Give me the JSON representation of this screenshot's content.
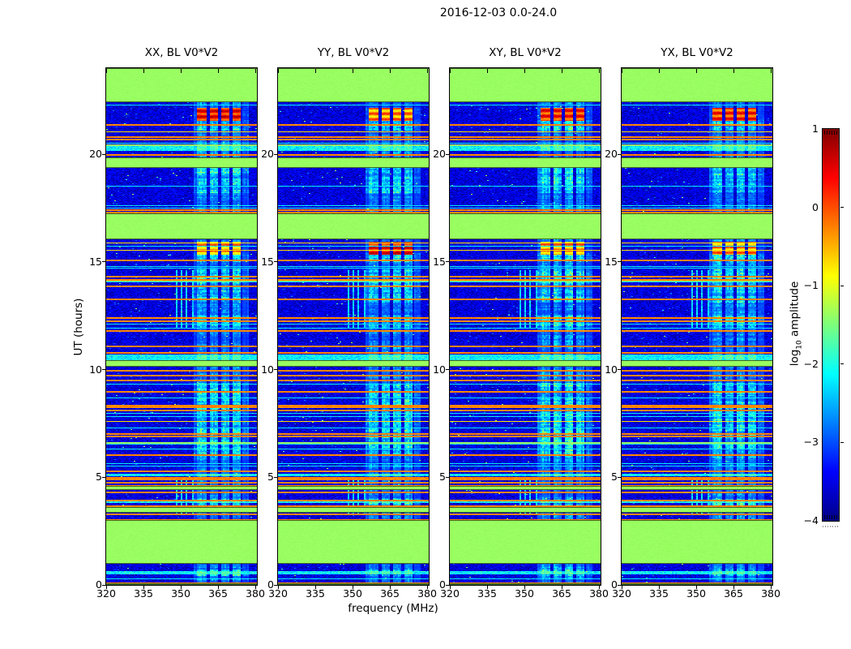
{
  "chart_data": {
    "type": "heatmap",
    "title": "2016-12-03 0.0-24.0",
    "xlabel": "frequency (MHz)",
    "ylabel": "UT (hours)",
    "x_range": [
      320,
      380.65
    ],
    "y_range": [
      0,
      24
    ],
    "xticks": [
      320,
      335,
      350,
      365,
      380
    ],
    "yticks": [
      0,
      5,
      10,
      15,
      20
    ],
    "panels": [
      {
        "label": "XX, BL V0*V2",
        "seed": 11,
        "blob1_v": 0.3,
        "blob2_v": -0.45
      },
      {
        "label": "YY, BL V0*V2",
        "seed": 27,
        "blob1_v": -0.35,
        "blob2_v": 0.3
      },
      {
        "label": "XY, BL V0*V2",
        "seed": 43,
        "blob1_v": 0.15,
        "blob2_v": -0.4
      },
      {
        "label": "YX, BL V0*V2",
        "seed": 59,
        "blob1_v": 0.1,
        "blob2_v": -0.4
      }
    ],
    "colorbar": {
      "label_pre": "log",
      "label_sub": "10",
      "label_post": " amplitude",
      "ticks": [
        "1",
        "0",
        "−1",
        "−2",
        "−3",
        "−4"
      ],
      "vmin": -4,
      "vmax": 1,
      "colormap": "jet"
    },
    "features": {
      "green_bands": [
        [
          22.4,
          24.0
        ],
        [
          19.37,
          19.85
        ],
        [
          16.05,
          17.25
        ],
        [
          10.12,
          10.42
        ],
        [
          4.4,
          4.6
        ],
        [
          3.35,
          3.62
        ],
        [
          0.98,
          3.02
        ],
        [
          0.0,
          0.06
        ]
      ],
      "green_lines": [
        20.47,
        14.15,
        6.62
      ],
      "orange_lines": [
        21.4,
        20.82,
        20.72,
        20.0,
        17.45,
        17.33,
        15.1,
        14.35,
        14.22,
        13.9,
        13.3,
        12.42,
        12.28,
        11.82,
        11.12,
        10.82,
        10.0,
        9.77,
        9.52,
        9.0,
        8.37,
        8.28,
        8.15,
        7.05,
        6.92,
        6.05,
        5.3,
        5.02,
        4.93,
        4.8,
        4.65,
        4.35,
        3.95,
        3.68,
        3.3,
        3.06,
        0.12
      ],
      "cyan_lines": [
        22.3,
        20.55,
        18.52,
        17.62,
        17.52,
        15.75,
        14.82,
        14.72,
        12.12,
        11.95,
        9.35,
        8.7,
        7.97,
        7.85,
        7.32,
        6.6,
        6.32,
        5.65,
        5.55,
        0.32
      ],
      "yellow_lines": [
        21.05,
        15.9,
        15.55,
        7.62
      ],
      "cyan_bands": [
        [
          20.15,
          20.38
        ],
        [
          14.05,
          14.18
        ],
        [
          10.45,
          10.7
        ],
        [
          6.52,
          6.6
        ],
        [
          5.05,
          5.18
        ],
        [
          3.8,
          3.92
        ],
        [
          0.5,
          0.64
        ]
      ],
      "rfi_segments": [
        [
          356.6,
          360.7
        ],
        [
          361.6,
          364.9
        ],
        [
          366.2,
          369.5
        ],
        [
          370.9,
          374.3
        ]
      ],
      "rfi_faint": [
        [
          354.9,
          356.4
        ],
        [
          374.5,
          377.6
        ]
      ],
      "narrow_lines_freq": [
        348.6,
        350.2,
        352.4,
        354.7
      ],
      "narrow_lines_times": [
        [
          3.3,
          5.0
        ],
        [
          11.9,
          14.6
        ]
      ],
      "band_active_times": [
        [
          21.1,
          21.6
        ],
        [
          18.2,
          19.35
        ],
        [
          15.0,
          15.4
        ],
        [
          13.1,
          14.65
        ],
        [
          11.9,
          12.5
        ],
        [
          5.9,
          9.4
        ],
        [
          3.7,
          4.0
        ],
        [
          0.4,
          0.7
        ]
      ],
      "blob1_time": [
        21.55,
        22.15
      ],
      "blob2_time": [
        15.35,
        15.95
      ]
    }
  }
}
